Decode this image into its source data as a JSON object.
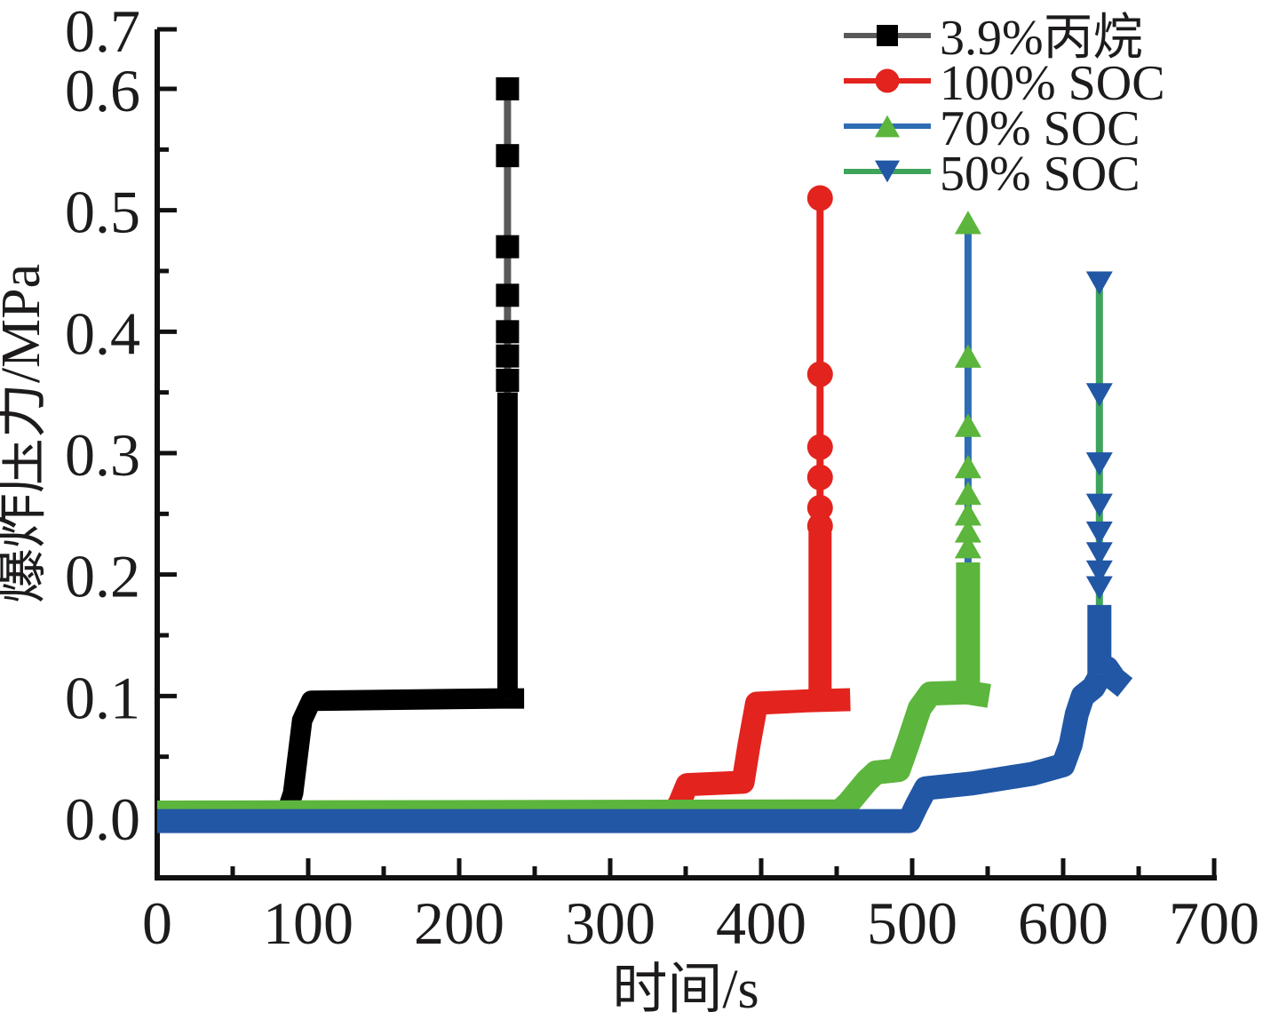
{
  "chart_data": {
    "type": "line",
    "title": "",
    "xlabel": "时间/s",
    "ylabel": "爆炸压力/MPa",
    "xlim": [
      0,
      700
    ],
    "ylim": [
      -0.05,
      0.65
    ],
    "grid": false,
    "legend_position": "top-right",
    "x_major_ticks": [
      {
        "label": "0",
        "value": 0
      },
      {
        "label": "100",
        "value": 100
      },
      {
        "label": "200",
        "value": 200
      },
      {
        "label": "300",
        "value": 300
      },
      {
        "label": "400",
        "value": 400
      },
      {
        "label": "500",
        "value": 500
      },
      {
        "label": "600",
        "value": 600
      },
      {
        "label": "700",
        "value": 700
      }
    ],
    "x_minor_ticks": [
      50,
      150,
      250,
      350,
      450,
      550,
      650
    ],
    "y_major_ticks": [
      {
        "label": "0.0",
        "value": 0.0
      },
      {
        "label": "0.1",
        "value": 0.1
      },
      {
        "label": "0.2",
        "value": 0.2
      },
      {
        "label": "0.3",
        "value": 0.3
      },
      {
        "label": "0.4",
        "value": 0.4
      },
      {
        "label": "0.5",
        "value": 0.5
      },
      {
        "label": "0.6",
        "value": 0.6
      },
      {
        "label": "0.7",
        "value": 0.7
      }
    ],
    "y_minor_ticks": [
      0.05,
      0.15,
      0.25,
      0.35,
      0.45,
      0.55
    ],
    "colors": {
      "axis": "#111111",
      "text": "#1d1b1b"
    },
    "series": [
      {
        "name": "3.9%丙烷",
        "marker": "square",
        "marker_color": "#000000",
        "line_color": "#595959",
        "marker_size": 23,
        "curve": [
          [
            0,
            0.005
          ],
          [
            86,
            0.005
          ],
          [
            90,
            0.02
          ],
          [
            96,
            0.08
          ],
          [
            102,
            0.096
          ],
          [
            228,
            0.098
          ],
          [
            243,
            0.098
          ]
        ],
        "spike": {
          "t": 232,
          "base": 0.098,
          "dense_top": 0.35,
          "peak": 0.6,
          "marker_values": [
            0.6,
            0.545,
            0.47,
            0.43,
            0.4,
            0.38,
            0.36
          ]
        }
      },
      {
        "name": "100% SOC",
        "marker": "circle",
        "marker_color": "#E3231E",
        "line_color": "#E3231E",
        "marker_size": 26,
        "curve": [
          [
            0,
            0.004
          ],
          [
            342,
            0.004
          ],
          [
            346,
            0.012
          ],
          [
            351,
            0.027
          ],
          [
            388,
            0.029
          ],
          [
            392,
            0.06
          ],
          [
            397,
            0.094
          ],
          [
            430,
            0.096
          ],
          [
            459,
            0.097
          ]
        ],
        "spike": {
          "t": 439,
          "base": 0.097,
          "dense_top": 0.235,
          "peak": 0.51,
          "marker_values": [
            0.51,
            0.365,
            0.305,
            0.28,
            0.255,
            0.24
          ]
        }
      },
      {
        "name": "70% SOC",
        "marker": "triangle-up",
        "marker_color": "#5CB53C",
        "line_color": "#2E6DB4",
        "marker_size": 27,
        "curve": [
          [
            0,
            0.004
          ],
          [
            452,
            0.005
          ],
          [
            458,
            0.012
          ],
          [
            470,
            0.03
          ],
          [
            476,
            0.037
          ],
          [
            491,
            0.039
          ],
          [
            497,
            0.06
          ],
          [
            505,
            0.09
          ],
          [
            512,
            0.102
          ],
          [
            536,
            0.103
          ],
          [
            551,
            0.1
          ]
        ],
        "spike": {
          "t": 537,
          "base": 0.103,
          "dense_top": 0.21,
          "peak": 0.49,
          "marker_values": [
            0.49,
            0.38,
            0.323,
            0.289,
            0.267,
            0.25,
            0.236,
            0.223
          ]
        }
      },
      {
        "name": "50% SOC",
        "marker": "triangle-down",
        "marker_color": "#2157A5",
        "line_color": "#3EA45B",
        "marker_size": 27,
        "curve": [
          [
            0,
            -0.003
          ],
          [
            498,
            -0.003
          ],
          [
            503,
            0.01
          ],
          [
            509,
            0.024
          ],
          [
            540,
            0.028
          ],
          [
            580,
            0.036
          ],
          [
            600,
            0.043
          ],
          [
            605,
            0.06
          ],
          [
            609,
            0.085
          ],
          [
            613,
            0.1
          ],
          [
            620,
            0.107
          ],
          [
            625,
            0.118
          ],
          [
            629,
            0.123
          ],
          [
            634,
            0.114
          ],
          [
            641,
            0.107
          ]
        ],
        "spike": {
          "t": 624,
          "base": 0.118,
          "dense_top": 0.175,
          "peak": 0.44,
          "marker_values": [
            0.44,
            0.348,
            0.291,
            0.257,
            0.234,
            0.217,
            0.202,
            0.189
          ]
        }
      }
    ]
  }
}
